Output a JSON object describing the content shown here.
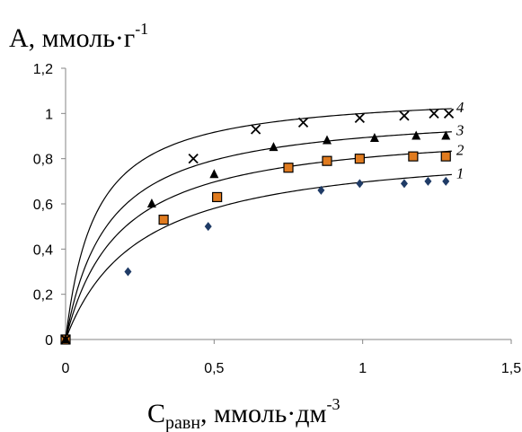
{
  "chart_data": {
    "type": "scatter",
    "ylabel": {
      "main": "A, ммоль·г",
      "sup": "-1"
    },
    "xlabel": {
      "main": "C",
      "sub": "равн",
      "rest": ", ммоль·дм",
      "sup": "-3"
    },
    "xlim": [
      0,
      1.5
    ],
    "ylim": [
      0,
      1.2
    ],
    "xticks": [
      "0",
      "0,5",
      "1",
      "1,5"
    ],
    "yticks": [
      "0",
      "0,2",
      "0,4",
      "0,6",
      "0,8",
      "1",
      "1,2"
    ],
    "grid": false,
    "legend": "none",
    "series": [
      {
        "label": "1",
        "marker": "diamond",
        "color": "#1f3b66",
        "x": [
          0,
          0.21,
          0.48,
          0.86,
          0.99,
          1.14,
          1.22,
          1.28
        ],
        "y": [
          0,
          0.3,
          0.5,
          0.66,
          0.69,
          0.69,
          0.7,
          0.7
        ],
        "fit": {
          "amax": 0.87,
          "k": 4.0
        }
      },
      {
        "label": "2",
        "marker": "square",
        "color": "#e07b1f",
        "x": [
          0,
          0.33,
          0.51,
          0.75,
          0.88,
          0.99,
          1.17,
          1.28
        ],
        "y": [
          0,
          0.53,
          0.63,
          0.76,
          0.79,
          0.8,
          0.81,
          0.81
        ],
        "fit": {
          "amax": 0.95,
          "k": 5.5
        }
      },
      {
        "label": "3",
        "marker": "triangle",
        "color": "#000000",
        "x": [
          0,
          0.29,
          0.5,
          0.7,
          0.88,
          1.04,
          1.18,
          1.28
        ],
        "y": [
          0,
          0.6,
          0.73,
          0.85,
          0.88,
          0.89,
          0.9,
          0.9
        ],
        "fit": {
          "amax": 1.02,
          "k": 7.0
        }
      },
      {
        "label": "4",
        "marker": "cross",
        "color": "#000000",
        "x": [
          0,
          0.43,
          0.64,
          0.8,
          0.99,
          1.14,
          1.24,
          1.29
        ],
        "y": [
          0,
          0.8,
          0.93,
          0.96,
          0.98,
          0.99,
          1.0,
          1.0
        ],
        "fit": {
          "amax": 1.1,
          "k": 10.0
        }
      }
    ]
  }
}
